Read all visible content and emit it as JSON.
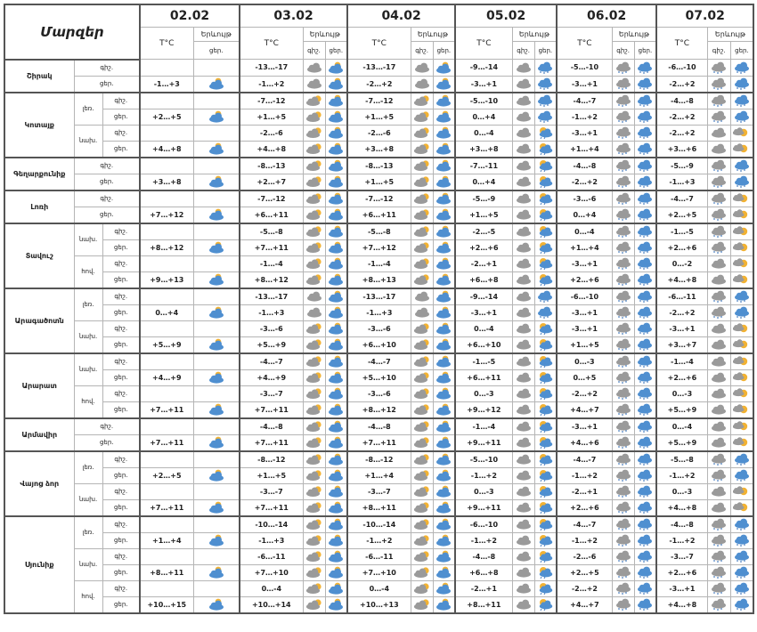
{
  "header": {
    "title": "Մարզեր",
    "temp_label": "T°C",
    "phenomena_label": "Երևույթ",
    "night_short": "գիշ.",
    "day_short": "ցեր."
  },
  "dates": [
    "02.02",
    "03.02",
    "04.02",
    "05.02",
    "06.02",
    "07.02"
  ],
  "colors": {
    "cloud_gray": "#9a9a9a",
    "cloud_blue": "#4f8fd0",
    "sun": "#f2b233",
    "snow": "#4a7fc0",
    "border": "#b5b5b5"
  },
  "regions": [
    {
      "name": "Շիրակ",
      "subs": [
        {
          "name": "",
          "night": {
            "t": [
              "",
              "-13…-17",
              "-13…-17",
              "-9…-14",
              "-5…-10",
              "-6…-10"
            ],
            "ic": [
              "",
              "cloud-gray",
              "cloud-gray",
              "cloud-gray",
              "snow-gray",
              "snow-gray"
            ]
          },
          "day": {
            "t": [
              "-1…+3",
              "-1…+2",
              "-2…+2",
              "-3…+1",
              "-3…+1",
              "-2…+2"
            ],
            "ic": [
              "partly-cloudy-blue",
              "partly-cloudy-blue",
              "partly-cloudy-blue",
              "snow-blue",
              "snow-blue",
              "snow-blue"
            ]
          }
        }
      ]
    },
    {
      "name": "Կոտայք",
      "subs": [
        {
          "name": "լեռ.",
          "night": {
            "t": [
              "",
              "-7…-12",
              "-7…-12",
              "-5…-10",
              "-4…-7",
              "-4…-8"
            ],
            "ic": [
              "",
              "cloud-sun",
              "cloud-sun",
              "cloud-gray",
              "snow-gray",
              "snow-gray"
            ]
          },
          "day": {
            "t": [
              "+2…+5",
              "+1…+5",
              "+1…+5",
              "0…+4",
              "-1…+2",
              "-2…+2"
            ],
            "ic": [
              "partly-cloudy-blue",
              "partly-cloudy-blue",
              "partly-cloudy-blue",
              "snow-blue",
              "snow-blue",
              "snow-blue"
            ]
          }
        },
        {
          "name": "նախ.",
          "night": {
            "t": [
              "",
              "-2…-6",
              "-2…-6",
              "0…-4",
              "-3…+1",
              "-2…+2"
            ],
            "ic": [
              "",
              "cloud-sun",
              "cloud-sun",
              "cloud-gray",
              "snow-gray",
              "cloud-gray"
            ]
          },
          "day": {
            "t": [
              "+4…+8",
              "+4…+8",
              "+3…+8",
              "+3…+8",
              "+1…+4",
              "+3…+6"
            ],
            "ic": [
              "partly-cloudy-blue",
              "partly-cloudy-blue",
              "partly-cloudy-blue",
              "rain-sun",
              "snow-blue",
              "sun-cloud"
            ]
          }
        }
      ]
    },
    {
      "name": "Գեղարքունիք",
      "subs": [
        {
          "name": "",
          "night": {
            "t": [
              "",
              "-8…-13",
              "-8…-13",
              "-7…-11",
              "-4…-8",
              "-5…-9"
            ],
            "ic": [
              "",
              "cloud-sun",
              "cloud-sun",
              "cloud-gray",
              "snow-gray",
              "snow-gray"
            ]
          },
          "day": {
            "t": [
              "+3…+8",
              "+2…+7",
              "+1…+5",
              "0…+4",
              "-2…+2",
              "-1…+3"
            ],
            "ic": [
              "partly-cloudy-blue",
              "partly-cloudy-blue",
              "partly-cloudy-blue",
              "rain-sun",
              "snow-blue",
              "snow-blue"
            ]
          }
        }
      ]
    },
    {
      "name": "Լոռի",
      "subs": [
        {
          "name": "",
          "night": {
            "t": [
              "",
              "-7…-12",
              "-7…-12",
              "-5…-9",
              "-3…-6",
              "-4…-7"
            ],
            "ic": [
              "",
              "cloud-sun",
              "cloud-sun",
              "cloud-gray",
              "snow-gray",
              "snow-gray"
            ]
          },
          "day": {
            "t": [
              "+7…+12",
              "+6…+11",
              "+6…+11",
              "+1…+5",
              "0…+4",
              "+2…+5"
            ],
            "ic": [
              "partly-cloudy-blue",
              "partly-cloudy-blue",
              "partly-cloudy-blue",
              "rain-sun",
              "snow-blue",
              "sun-cloud"
            ]
          }
        }
      ]
    },
    {
      "name": "Տավուշ",
      "subs": [
        {
          "name": "նախ.",
          "night": {
            "t": [
              "",
              "-5…-8",
              "-5…-8",
              "-2…-5",
              "0…-4",
              "-1…-5"
            ],
            "ic": [
              "",
              "cloud-sun",
              "cloud-sun",
              "cloud-gray",
              "snow-gray",
              "snow-gray"
            ]
          },
          "day": {
            "t": [
              "+8…+12",
              "+7…+11",
              "+7…+12",
              "+2…+6",
              "+1…+4",
              "+2…+6"
            ],
            "ic": [
              "partly-cloudy-blue",
              "partly-cloudy-blue",
              "partly-cloudy-blue",
              "rain-sun",
              "snow-blue",
              "sun-cloud"
            ]
          }
        },
        {
          "name": "հով.",
          "night": {
            "t": [
              "",
              "-1…-4",
              "-1…-4",
              "-2…+1",
              "-3…+1",
              "0…-2"
            ],
            "ic": [
              "",
              "cloud-sun",
              "cloud-sun",
              "cloud-gray",
              "snow-gray",
              "cloud-gray"
            ]
          },
          "day": {
            "t": [
              "+9…+13",
              "+8…+12",
              "+8…+13",
              "+6…+8",
              "+2…+6",
              "+4…+8"
            ],
            "ic": [
              "partly-cloudy-blue",
              "partly-cloudy-blue",
              "partly-cloudy-blue",
              "rain-sun",
              "snow-blue",
              "sun-cloud"
            ]
          }
        }
      ]
    },
    {
      "name": "Արագածոտն",
      "subs": [
        {
          "name": "լեռ.",
          "night": {
            "t": [
              "",
              "-13…-17",
              "-13…-17",
              "-9…-14",
              "-6…-10",
              "-6…-11"
            ],
            "ic": [
              "",
              "cloud-gray",
              "cloud-gray",
              "cloud-gray",
              "snow-gray",
              "snow-gray"
            ]
          },
          "day": {
            "t": [
              "0…+4",
              "-1…+3",
              "-1…+3",
              "-3…+1",
              "-3…+1",
              "-2…+2"
            ],
            "ic": [
              "partly-cloudy-blue",
              "partly-cloudy-blue",
              "partly-cloudy-blue",
              "snow-blue",
              "snow-blue",
              "snow-blue"
            ]
          }
        },
        {
          "name": "նախ.",
          "night": {
            "t": [
              "",
              "-3…-6",
              "-3…-6",
              "0…-4",
              "-3…+1",
              "-3…+1"
            ],
            "ic": [
              "",
              "cloud-sun",
              "cloud-sun",
              "cloud-gray",
              "snow-gray",
              "cloud-gray"
            ]
          },
          "day": {
            "t": [
              "+5…+9",
              "+5…+9",
              "+6…+10",
              "+6…+10",
              "+1…+5",
              "+3…+7"
            ],
            "ic": [
              "partly-cloudy-blue",
              "partly-cloudy-blue",
              "partly-cloudy-blue",
              "rain-sun",
              "snow-blue",
              "sun-cloud"
            ]
          }
        }
      ]
    },
    {
      "name": "Արարատ",
      "subs": [
        {
          "name": "նախ.",
          "night": {
            "t": [
              "",
              "-4…-7",
              "-4…-7",
              "-1…-5",
              "0…-3",
              "-1…-4"
            ],
            "ic": [
              "",
              "cloud-sun",
              "cloud-sun",
              "cloud-gray",
              "snow-gray",
              "cloud-gray"
            ]
          },
          "day": {
            "t": [
              "+4…+9",
              "+4…+9",
              "+5…+10",
              "+6…+11",
              "0…+5",
              "+2…+6"
            ],
            "ic": [
              "partly-cloudy-blue",
              "partly-cloudy-blue",
              "partly-cloudy-blue",
              "rain-sun",
              "snow-blue",
              "sun-cloud"
            ]
          }
        },
        {
          "name": "հով.",
          "night": {
            "t": [
              "",
              "-3…-7",
              "-3…-6",
              "0…-3",
              "-2…+2",
              "0…-3"
            ],
            "ic": [
              "",
              "cloud-sun",
              "cloud-sun",
              "cloud-gray",
              "snow-gray",
              "cloud-gray"
            ]
          },
          "day": {
            "t": [
              "+7…+11",
              "+7…+11",
              "+8…+12",
              "+9…+12",
              "+4…+7",
              "+5…+9"
            ],
            "ic": [
              "partly-cloudy-blue",
              "partly-cloudy-blue",
              "partly-cloudy-blue",
              "rain-sun",
              "snow-blue",
              "sun-cloud"
            ]
          }
        }
      ]
    },
    {
      "name": "Արմավիր",
      "subs": [
        {
          "name": "",
          "night": {
            "t": [
              "",
              "-4…-8",
              "-4…-8",
              "-1…-4",
              "-3…+1",
              "0…-4"
            ],
            "ic": [
              "",
              "cloud-sun",
              "cloud-sun",
              "cloud-gray",
              "snow-gray",
              "cloud-gray"
            ]
          },
          "day": {
            "t": [
              "+7…+11",
              "+7…+11",
              "+7…+11",
              "+9…+11",
              "+4…+6",
              "+5…+9"
            ],
            "ic": [
              "partly-cloudy-blue",
              "partly-cloudy-blue",
              "partly-cloudy-blue",
              "rain-sun",
              "snow-blue",
              "sun-cloud"
            ]
          }
        }
      ]
    },
    {
      "name": "Վայոց ձոր",
      "subs": [
        {
          "name": "լեռ.",
          "night": {
            "t": [
              "",
              "-8…-12",
              "-8…-12",
              "-5…-10",
              "-4…-7",
              "-5…-8"
            ],
            "ic": [
              "",
              "cloud-sun",
              "cloud-sun",
              "cloud-gray",
              "snow-gray",
              "snow-gray"
            ]
          },
          "day": {
            "t": [
              "+2…+5",
              "+1…+5",
              "+1…+4",
              "-1…+2",
              "-1…+2",
              "-1…+2"
            ],
            "ic": [
              "partly-cloudy-blue",
              "partly-cloudy-blue",
              "partly-cloudy-blue",
              "rain-sun",
              "snow-blue",
              "snow-blue"
            ]
          }
        },
        {
          "name": "նախ.",
          "night": {
            "t": [
              "",
              "-3…-7",
              "-3…-7",
              "0…-3",
              "-2…+1",
              "0…-3"
            ],
            "ic": [
              "",
              "cloud-sun",
              "cloud-sun",
              "cloud-gray",
              "snow-gray",
              "cloud-gray"
            ]
          },
          "day": {
            "t": [
              "+7…+11",
              "+7…+11",
              "+8…+11",
              "+9…+11",
              "+2…+6",
              "+4…+8"
            ],
            "ic": [
              "partly-cloudy-blue",
              "partly-cloudy-blue",
              "partly-cloudy-blue",
              "rain-sun",
              "snow-blue",
              "sun-cloud"
            ]
          }
        }
      ]
    },
    {
      "name": "Սյունիք",
      "subs": [
        {
          "name": "լեռ.",
          "night": {
            "t": [
              "",
              "-10…-14",
              "-10…-14",
              "-6…-10",
              "-4…-7",
              "-4…-8"
            ],
            "ic": [
              "",
              "cloud-sun",
              "cloud-sun",
              "cloud-gray",
              "snow-gray",
              "snow-gray"
            ]
          },
          "day": {
            "t": [
              "+1…+4",
              "-1…+3",
              "-1…+2",
              "-1…+2",
              "-1…+2",
              "-1…+2"
            ],
            "ic": [
              "partly-cloudy-blue",
              "partly-cloudy-blue",
              "partly-cloudy-blue",
              "rain-sun",
              "snow-blue",
              "snow-blue"
            ]
          }
        },
        {
          "name": "նախ.",
          "night": {
            "t": [
              "",
              "-6…-11",
              "-6…-11",
              "-4…-8",
              "-2…-6",
              "-3…-7"
            ],
            "ic": [
              "",
              "cloud-sun",
              "cloud-sun",
              "cloud-gray",
              "snow-gray",
              "snow-gray"
            ]
          },
          "day": {
            "t": [
              "+8…+11",
              "+7…+10",
              "+7…+10",
              "+6…+8",
              "+2…+5",
              "+2…+6"
            ],
            "ic": [
              "partly-cloudy-blue",
              "partly-cloudy-blue",
              "partly-cloudy-blue",
              "rain-sun",
              "snow-blue",
              "snow-blue"
            ]
          }
        },
        {
          "name": "հով.",
          "night": {
            "t": [
              "",
              "0…-4",
              "0…-4",
              "-2…+1",
              "-2…+2",
              "-3…+1"
            ],
            "ic": [
              "",
              "cloud-sun",
              "cloud-sun",
              "cloud-gray",
              "snow-gray",
              "snow-gray"
            ]
          },
          "day": {
            "t": [
              "+10…+15",
              "+10…+14",
              "+10…+13",
              "+8…+11",
              "+4…+7",
              "+4…+8"
            ],
            "ic": [
              "partly-cloudy-blue",
              "partly-cloudy-blue",
              "partly-cloudy-blue",
              "rain-sun",
              "snow-blue",
              "snow-blue"
            ]
          }
        }
      ]
    }
  ]
}
